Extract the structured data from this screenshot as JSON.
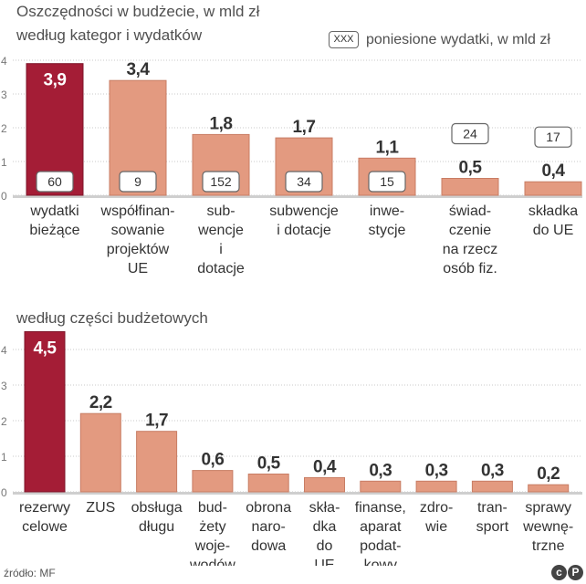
{
  "title": "Oszczędności w budżecie, w mld zł",
  "source": "źródło: MF",
  "logo": {
    "left": "c",
    "right": "P"
  },
  "legend": {
    "box_text": "XXX",
    "label": "poniesione wydatki, w mld zł"
  },
  "colors": {
    "highlight": "#a41d36",
    "bar": "#e39a80",
    "grid": "#c8c8c8",
    "axis": "#cfcfcf",
    "text": "#333333"
  },
  "chart_data": [
    {
      "type": "bar",
      "title": "według kategor i wydatków",
      "ylim": [
        0,
        4
      ],
      "yticks": [
        "0",
        "1",
        "2",
        "3",
        "4"
      ],
      "categories": [
        [
          "wydatki",
          "bieżące"
        ],
        [
          "współfinan-",
          "sowanie",
          "projektów",
          "UE"
        ],
        [
          "sub-",
          "wencje",
          "i",
          "dotacje"
        ],
        [
          "subwencje",
          "i dotacje"
        ],
        [
          "inwe-",
          "stycje"
        ],
        [
          "świad-",
          "czenie",
          "na rzecz",
          "osób fiz."
        ],
        [
          "składka",
          "do UE"
        ]
      ],
      "values": [
        3.9,
        3.4,
        1.8,
        1.7,
        1.1,
        0.5,
        0.4
      ],
      "value_labels": [
        "3,9",
        "3,4",
        "1,8",
        "1,7",
        "1,1",
        "0,5",
        "0,4"
      ],
      "spent_labels": [
        "60",
        "9",
        "152",
        "34",
        "15",
        "24",
        "17"
      ],
      "highlight_index": 0
    },
    {
      "type": "bar",
      "title": "według części budżetowych",
      "ylim": [
        0,
        4.5
      ],
      "yticks": [
        "0",
        "1",
        "2",
        "3",
        "4"
      ],
      "categories": [
        [
          "rezerwy",
          "celowe"
        ],
        [
          "ZUS"
        ],
        [
          "obsługa",
          "długu"
        ],
        [
          "bud-",
          "żety",
          "woje-",
          "wodów"
        ],
        [
          "obrona",
          "naro-",
          "dowa"
        ],
        [
          "skła-",
          "dka",
          "do",
          "UE"
        ],
        [
          "finanse,",
          "aparat",
          "podat-",
          "kowy"
        ],
        [
          "zdro-",
          "wie"
        ],
        [
          "tran-",
          "sport"
        ],
        [
          "sprawy",
          "wewnę-",
          "trzne"
        ]
      ],
      "values": [
        4.5,
        2.2,
        1.7,
        0.6,
        0.5,
        0.4,
        0.3,
        0.3,
        0.3,
        0.2
      ],
      "value_labels": [
        "4,5",
        "2,2",
        "1,7",
        "0,6",
        "0,5",
        "0,4",
        "0,3",
        "0,3",
        "0,3",
        "0,2"
      ],
      "highlight_index": 0
    }
  ]
}
